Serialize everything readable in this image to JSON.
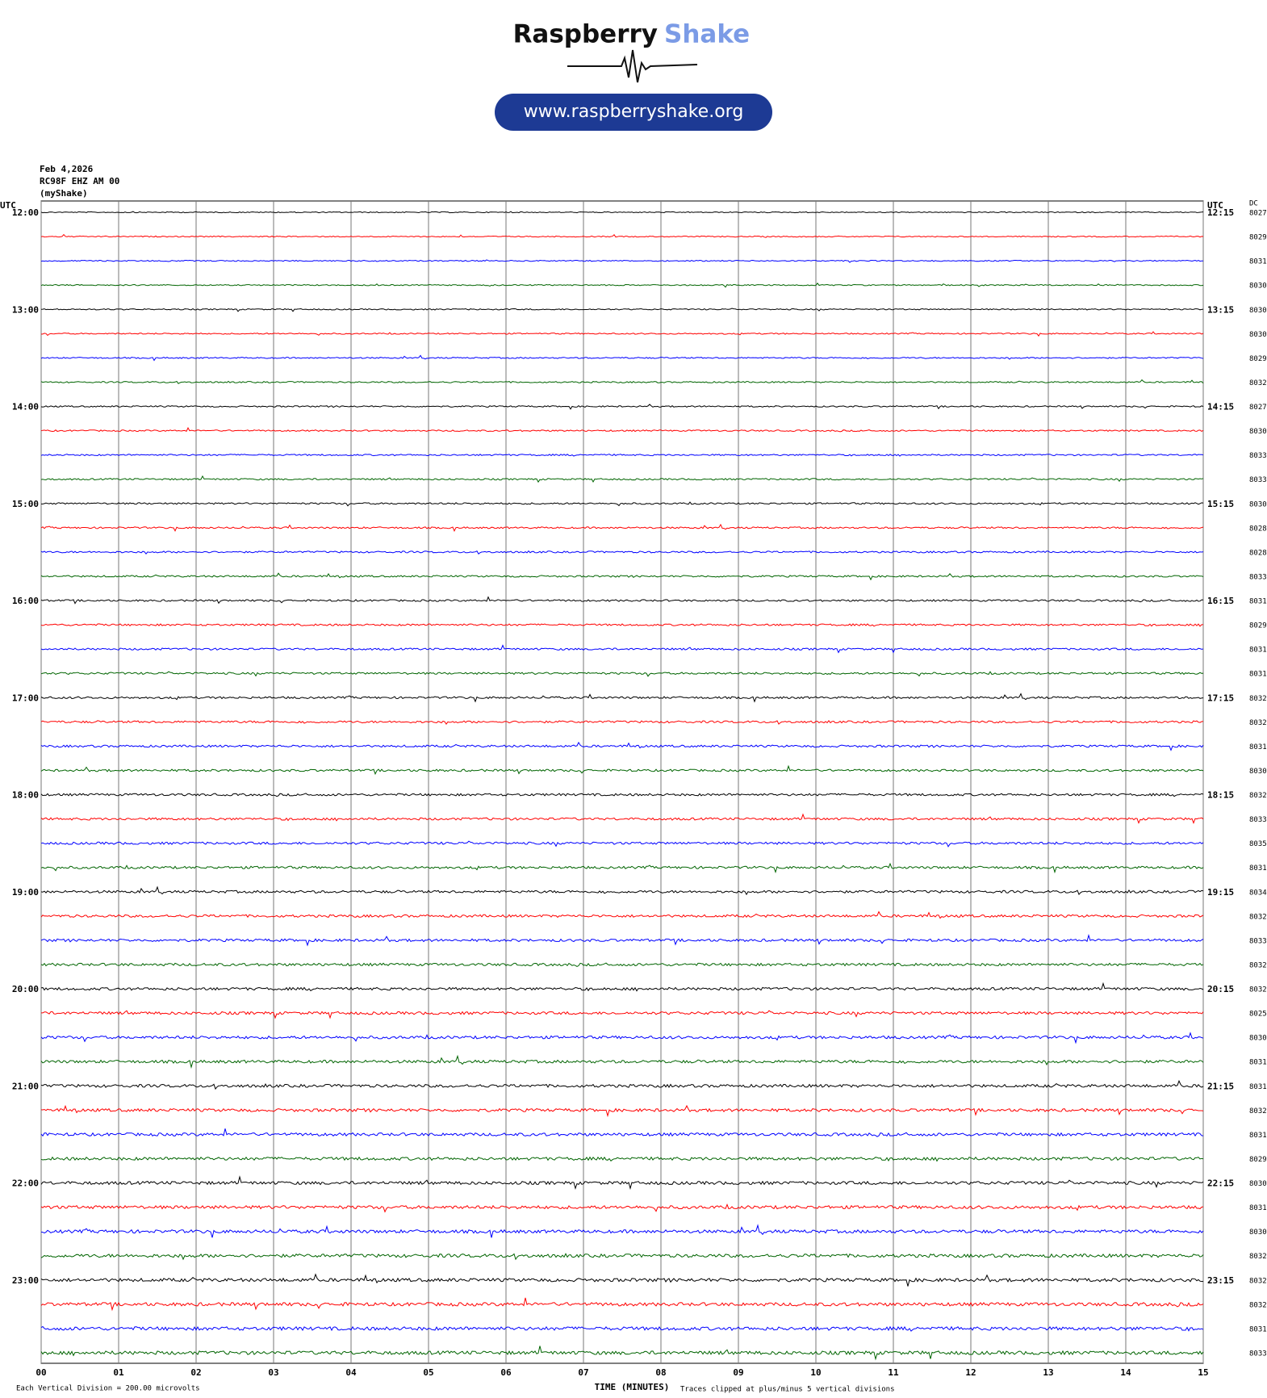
{
  "header": {
    "brand_1": "Raspberry",
    "brand_2": "Shake",
    "url": "www.raspberryshake.org"
  },
  "chart_data": {
    "type": "helicorder",
    "date": "Feb 4,2026",
    "station": "RC98F EHZ AM 00",
    "source": "(myShake)",
    "left_axis_label": "UTC",
    "right_axis_label": "UTC",
    "dc_label": "DC",
    "left_labels": [
      "12:00",
      "13:00",
      "14:00",
      "15:00",
      "16:00",
      "17:00",
      "18:00",
      "19:00",
      "20:00",
      "21:00",
      "22:00",
      "23:00"
    ],
    "right_labels": [
      "12:15",
      "13:15",
      "14:15",
      "15:15",
      "16:15",
      "17:15",
      "18:15",
      "19:15",
      "20:15",
      "21:15",
      "22:15",
      "23:15"
    ],
    "dc_values": [
      8027,
      8029,
      8031,
      8030,
      8030,
      8030,
      8029,
      8032,
      8027,
      8030,
      8033,
      8033,
      8030,
      8028,
      8028,
      8033,
      8031,
      8029,
      8031,
      8031,
      8032,
      8032,
      8031,
      8030,
      8032,
      8033,
      8035,
      8031,
      8034,
      8032,
      8033,
      8032,
      8032,
      8025,
      8030,
      8031,
      8031,
      8032,
      8031,
      8029,
      8030,
      8031,
      8030,
      8032,
      8032,
      8032,
      8031,
      8033
    ],
    "xlim": [
      0,
      15
    ],
    "xticks": [
      {
        "value": 0,
        "label": "00"
      },
      {
        "value": 1,
        "label": "01"
      },
      {
        "value": 2,
        "label": "02"
      },
      {
        "value": 3,
        "label": "03"
      },
      {
        "value": 4,
        "label": "04"
      },
      {
        "value": 5,
        "label": "05"
      },
      {
        "value": 6,
        "label": "06"
      },
      {
        "value": 7,
        "label": "07"
      },
      {
        "value": 8,
        "label": "08"
      },
      {
        "value": 9,
        "label": "09"
      },
      {
        "value": 10,
        "label": "10"
      },
      {
        "value": 11,
        "label": "11"
      },
      {
        "value": 12,
        "label": "12"
      },
      {
        "value": 13,
        "label": "13"
      },
      {
        "value": 14,
        "label": "14"
      },
      {
        "value": 15,
        "label": "15"
      }
    ],
    "xlabel": "TIME (MINUTES)",
    "footer_left": "Each Vertical Division =  200.00 microvolts",
    "footer_right": "Traces clipped at plus/minus 5 vertical divisions",
    "colors": [
      "#000000",
      "#ff0000",
      "#0000ff",
      "#006400"
    ],
    "grid": true
  }
}
